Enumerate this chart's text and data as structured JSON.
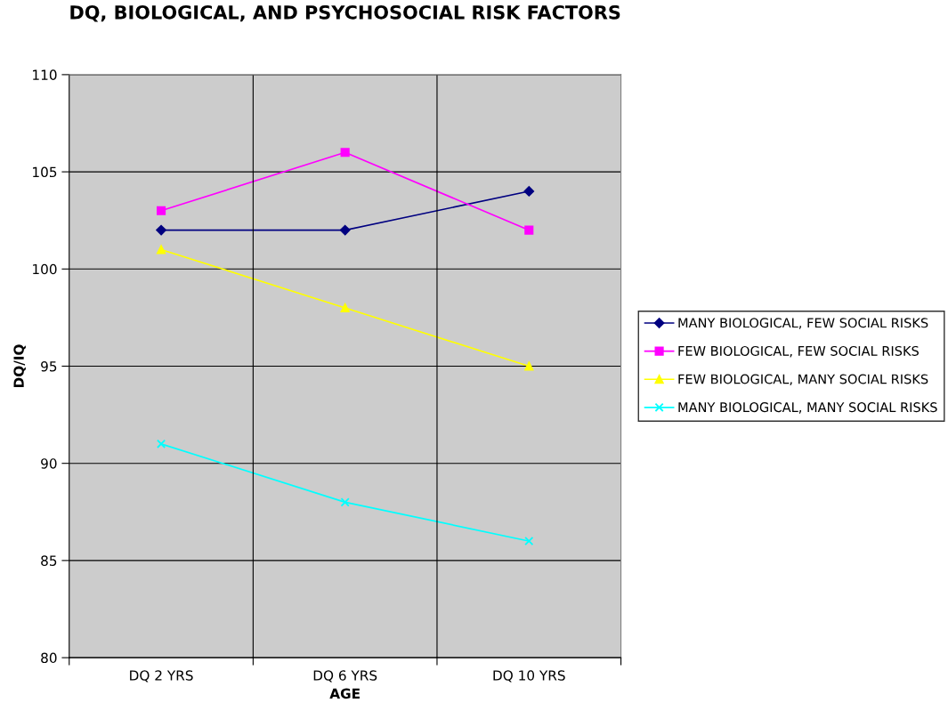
{
  "chart_data": {
    "type": "line",
    "title": "DQ, BIOLOGICAL, AND PSYCHOSOCIAL RISK FACTORS",
    "xlabel": "AGE",
    "ylabel": "DQ/IQ",
    "categories": [
      "DQ 2 YRS",
      "DQ 6 YRS",
      "DQ 10 YRS"
    ],
    "series": [
      {
        "name": "MANY BIOLOGICAL, FEW SOCIAL RISKS",
        "color": "#000080",
        "marker": "diamond",
        "values": [
          102,
          102,
          104
        ]
      },
      {
        "name": "FEW BIOLOGICAL, FEW SOCIAL RISKS",
        "color": "#ff00ff",
        "marker": "square",
        "values": [
          103,
          106,
          102
        ]
      },
      {
        "name": "FEW BIOLOGICAL, MANY SOCIAL RISKS",
        "color": "#ffff00",
        "marker": "triangle",
        "values": [
          101,
          98,
          95
        ]
      },
      {
        "name": "MANY BIOLOGICAL, MANY SOCIAL RISKS",
        "color": "#00ffff",
        "marker": "cross",
        "values": [
          91,
          88,
          86
        ]
      }
    ],
    "ylim": [
      80,
      110
    ],
    "yticks": [
      80,
      85,
      90,
      95,
      100,
      105,
      110
    ],
    "grid": true,
    "legend": "right",
    "line_style": "solid"
  }
}
